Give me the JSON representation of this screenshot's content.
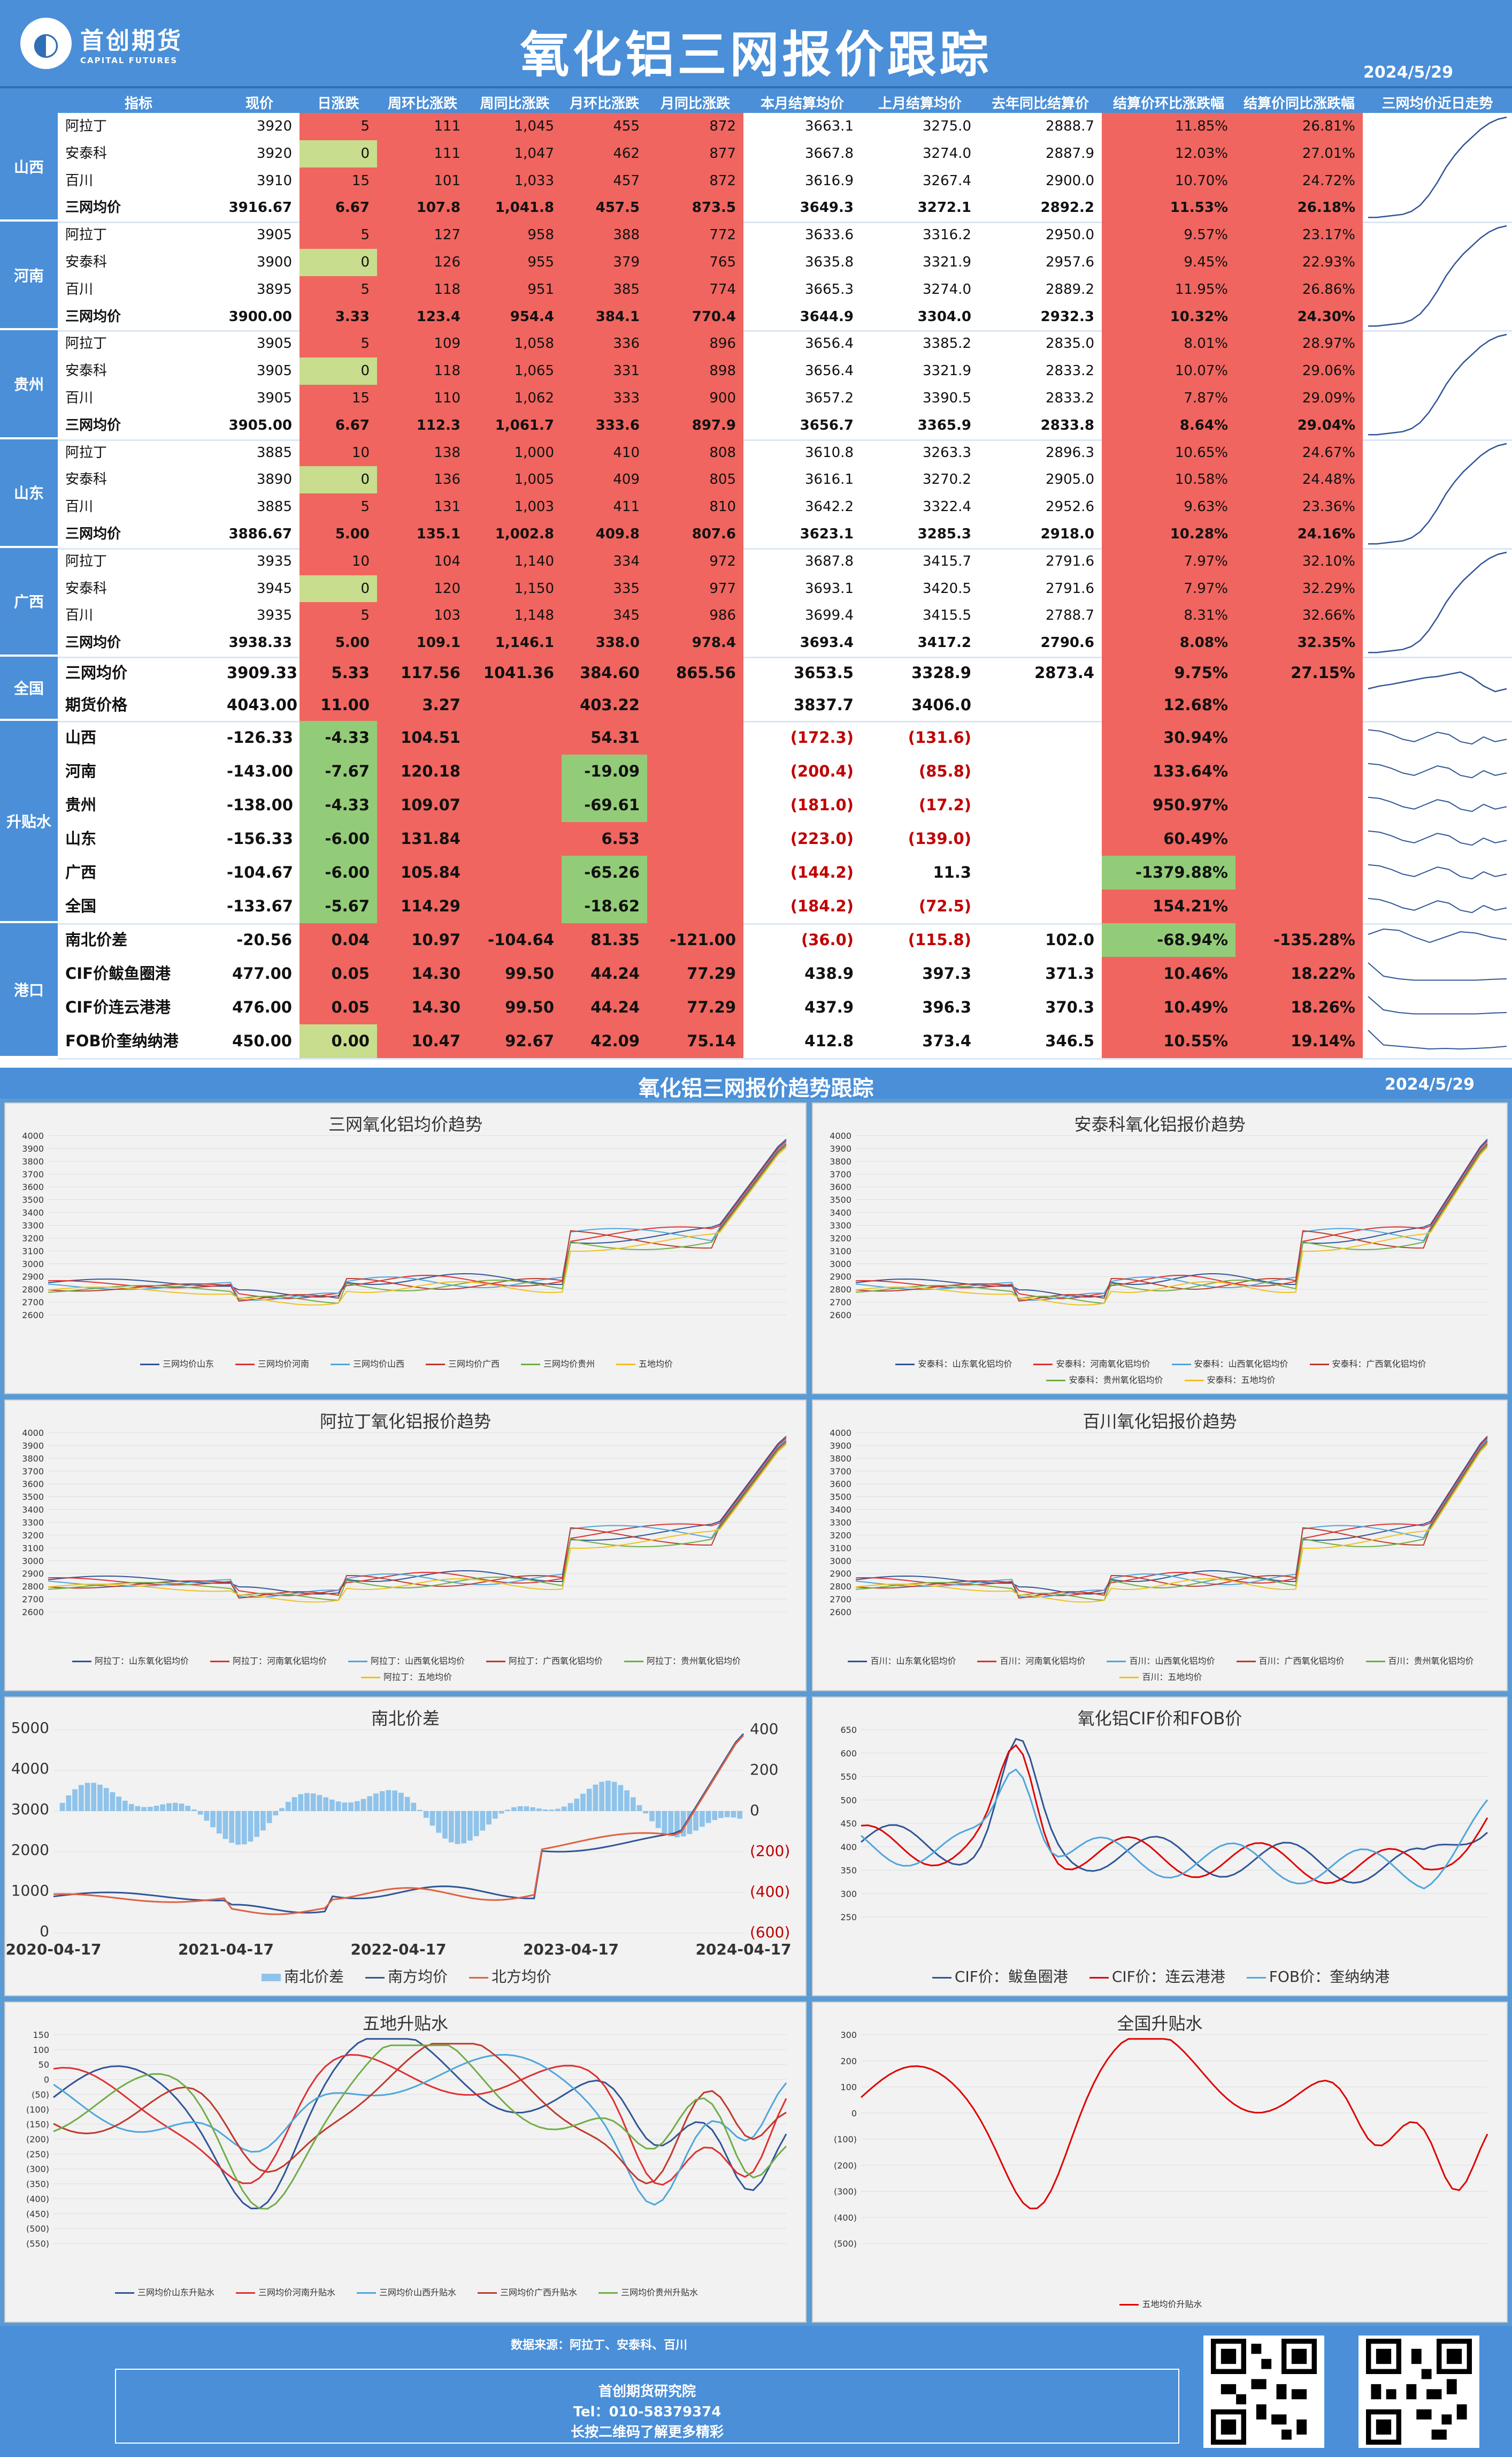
{
  "header": {
    "logo_cn": "首创期货",
    "logo_en": "CAPITAL FUTURES",
    "title": "氧化铝三网报价跟踪",
    "date": "2024/5/29"
  },
  "columns": [
    "指标",
    "现价",
    "日涨跌",
    "周环比涨跌",
    "周同比涨跌",
    "月环比涨跌",
    "月同比涨跌",
    "本月结算均价",
    "上月结算均价",
    "去年同比结算价",
    "结算价环比涨跌幅",
    "结算价同比涨跌幅",
    "三网均价近日走势"
  ],
  "regions": [
    {
      "name": "山西",
      "rows": [
        [
          "阿拉丁",
          "3920",
          "5",
          "111",
          "1,045",
          "455",
          "872",
          "3663.1",
          "3275.0",
          "2888.7",
          "11.85%",
          "26.81%"
        ],
        [
          "安泰科",
          "3920",
          "0",
          "111",
          "1,047",
          "462",
          "877",
          "3667.8",
          "3274.0",
          "2887.9",
          "12.03%",
          "27.01%"
        ],
        [
          "百川",
          "3910",
          "15",
          "101",
          "1,033",
          "457",
          "872",
          "3616.9",
          "3267.4",
          "2900.0",
          "10.70%",
          "24.72%"
        ],
        [
          "三网均价",
          "3916.67",
          "6.67",
          "107.8",
          "1,041.8",
          "457.5",
          "873.5",
          "3649.3",
          "3272.1",
          "2892.2",
          "11.53%",
          "26.18%"
        ]
      ]
    },
    {
      "name": "河南",
      "rows": [
        [
          "阿拉丁",
          "3905",
          "5",
          "127",
          "958",
          "388",
          "772",
          "3633.6",
          "3316.2",
          "2950.0",
          "9.57%",
          "23.17%"
        ],
        [
          "安泰科",
          "3900",
          "0",
          "126",
          "955",
          "379",
          "765",
          "3635.8",
          "3321.9",
          "2957.6",
          "9.45%",
          "22.93%"
        ],
        [
          "百川",
          "3895",
          "5",
          "118",
          "951",
          "385",
          "774",
          "3665.3",
          "3274.0",
          "2889.2",
          "11.95%",
          "26.86%"
        ],
        [
          "三网均价",
          "3900.00",
          "3.33",
          "123.4",
          "954.4",
          "384.1",
          "770.4",
          "3644.9",
          "3304.0",
          "2932.3",
          "10.32%",
          "24.30%"
        ]
      ]
    },
    {
      "name": "贵州",
      "rows": [
        [
          "阿拉丁",
          "3905",
          "5",
          "109",
          "1,058",
          "336",
          "896",
          "3656.4",
          "3385.2",
          "2835.0",
          "8.01%",
          "28.97%"
        ],
        [
          "安泰科",
          "3905",
          "0",
          "118",
          "1,065",
          "331",
          "898",
          "3656.4",
          "3321.9",
          "2833.2",
          "10.07%",
          "29.06%"
        ],
        [
          "百川",
          "3905",
          "15",
          "110",
          "1,062",
          "333",
          "900",
          "3657.2",
          "3390.5",
          "2833.2",
          "7.87%",
          "29.09%"
        ],
        [
          "三网均价",
          "3905.00",
          "6.67",
          "112.3",
          "1,061.7",
          "333.6",
          "897.9",
          "3656.7",
          "3365.9",
          "2833.8",
          "8.64%",
          "29.04%"
        ]
      ]
    },
    {
      "name": "山东",
      "rows": [
        [
          "阿拉丁",
          "3885",
          "10",
          "138",
          "1,000",
          "410",
          "808",
          "3610.8",
          "3263.3",
          "2896.3",
          "10.65%",
          "24.67%"
        ],
        [
          "安泰科",
          "3890",
          "0",
          "136",
          "1,005",
          "409",
          "805",
          "3616.1",
          "3270.2",
          "2905.0",
          "10.58%",
          "24.48%"
        ],
        [
          "百川",
          "3885",
          "5",
          "131",
          "1,003",
          "411",
          "810",
          "3642.2",
          "3322.4",
          "2952.6",
          "9.63%",
          "23.36%"
        ],
        [
          "三网均价",
          "3886.67",
          "5.00",
          "135.1",
          "1,002.8",
          "409.8",
          "807.6",
          "3623.1",
          "3285.3",
          "2918.0",
          "10.28%",
          "24.16%"
        ]
      ]
    },
    {
      "name": "广西",
      "rows": [
        [
          "阿拉丁",
          "3935",
          "10",
          "104",
          "1,140",
          "334",
          "972",
          "3687.8",
          "3415.7",
          "2791.6",
          "7.97%",
          "32.10%"
        ],
        [
          "安泰科",
          "3945",
          "0",
          "120",
          "1,150",
          "335",
          "977",
          "3693.1",
          "3420.5",
          "2791.6",
          "7.97%",
          "32.29%"
        ],
        [
          "百川",
          "3935",
          "5",
          "103",
          "1,148",
          "345",
          "986",
          "3699.4",
          "3415.5",
          "2788.7",
          "8.31%",
          "32.66%"
        ],
        [
          "三网均价",
          "3938.33",
          "5.00",
          "109.1",
          "1,146.1",
          "338.0",
          "978.4",
          "3693.4",
          "3417.2",
          "2790.6",
          "8.08%",
          "32.35%"
        ]
      ]
    }
  ],
  "national": {
    "name": "全国",
    "rows": [
      [
        "三网均价",
        "3909.33",
        "5.33",
        "117.56",
        "1041.36",
        "384.60",
        "865.56",
        "3653.5",
        "3328.9",
        "2873.4",
        "9.75%",
        "27.15%"
      ],
      [
        "期货价格",
        "4043.00",
        "11.00",
        "3.27",
        "",
        "403.22",
        "",
        "3837.7",
        "3406.0",
        "",
        "12.68%",
        ""
      ]
    ]
  },
  "basis": {
    "name": "升贴水",
    "rows": [
      [
        "山西",
        "-126.33",
        "-4.33",
        "104.51",
        "",
        "54.31",
        "",
        "(172.3)",
        "(131.6)",
        "",
        "30.94%",
        ""
      ],
      [
        "河南",
        "-143.00",
        "-7.67",
        "120.18",
        "",
        "-19.09",
        "",
        "(200.4)",
        "(85.8)",
        "",
        "133.64%",
        ""
      ],
      [
        "贵州",
        "-138.00",
        "-4.33",
        "109.07",
        "",
        "-69.61",
        "",
        "(181.0)",
        "(17.2)",
        "",
        "950.97%",
        ""
      ],
      [
        "山东",
        "-156.33",
        "-6.00",
        "131.84",
        "",
        "6.53",
        "",
        "(223.0)",
        "(139.0)",
        "",
        "60.49%",
        ""
      ],
      [
        "广西",
        "-104.67",
        "-6.00",
        "105.84",
        "",
        "-65.26",
        "",
        "(144.2)",
        "11.3",
        "",
        "-1379.88%",
        ""
      ],
      [
        "全国",
        "-133.67",
        "-5.67",
        "114.29",
        "",
        "-18.62",
        "",
        "(184.2)",
        "(72.5)",
        "",
        "154.21%",
        ""
      ]
    ]
  },
  "port": {
    "name": "港口",
    "rows": [
      [
        "南北价差",
        "-20.56",
        "0.04",
        "10.97",
        "-104.64",
        "81.35",
        "-121.00",
        "(36.0)",
        "(115.8)",
        "102.0",
        "-68.94%",
        "-135.28%"
      ],
      [
        "CIF价鲅鱼圈港",
        "477.00",
        "0.05",
        "14.30",
        "99.50",
        "44.24",
        "77.29",
        "438.9",
        "397.3",
        "371.3",
        "10.46%",
        "18.22%"
      ],
      [
        "CIF价连云港港",
        "476.00",
        "0.05",
        "14.30",
        "99.50",
        "44.24",
        "77.29",
        "437.9",
        "396.3",
        "370.3",
        "10.49%",
        "18.26%"
      ],
      [
        "FOB价奎纳纳港",
        "450.00",
        "0.00",
        "10.47",
        "92.67",
        "42.09",
        "75.14",
        "412.8",
        "373.4",
        "346.5",
        "10.55%",
        "19.14%"
      ]
    ]
  },
  "section2": {
    "title": "氧化铝三网报价趋势跟踪",
    "date": "2024/5/29"
  },
  "charts": [
    {
      "title": "三网氧化铝均价趋势",
      "yticks": [
        "4000",
        "3900",
        "3800",
        "3700",
        "3600",
        "3500",
        "3400",
        "3300",
        "3200",
        "3100",
        "3000",
        "2900",
        "2800",
        "2700",
        "2600"
      ],
      "legend": [
        "三网均价山东",
        "三网均价河南",
        "三网均价山西",
        "三网均价广西",
        "三网均价贵州",
        "五地均价"
      ]
    },
    {
      "title": "安泰科氧化铝报价趋势",
      "yticks": [
        "4000",
        "3900",
        "3800",
        "3700",
        "3600",
        "3500",
        "3400",
        "3300",
        "3200",
        "3100",
        "3000",
        "2900",
        "2800",
        "2700",
        "2600"
      ],
      "legend": [
        "安泰科：山东氧化铝均价",
        "安泰科：河南氧化铝均价",
        "安泰科：山西氧化铝均价",
        "安泰科：广西氧化铝均价",
        "安泰科：贵州氧化铝均价",
        "安泰科：五地均价"
      ]
    },
    {
      "title": "阿拉丁氧化铝报价趋势",
      "yticks": [
        "4000",
        "3900",
        "3800",
        "3700",
        "3600",
        "3500",
        "3400",
        "3300",
        "3200",
        "3100",
        "3000",
        "2900",
        "2800",
        "2700",
        "2600"
      ],
      "legend": [
        "阿拉丁：山东氧化铝均价",
        "阿拉丁：河南氧化铝均价",
        "阿拉丁：山西氧化铝均价",
        "阿拉丁：广西氧化铝均价",
        "阿拉丁：贵州氧化铝均价",
        "阿拉丁：五地均价"
      ]
    },
    {
      "title": "百川氧化铝报价趋势",
      "yticks": [
        "4000",
        "3900",
        "3800",
        "3700",
        "3600",
        "3500",
        "3400",
        "3300",
        "3200",
        "3100",
        "3000",
        "2900",
        "2800",
        "2700",
        "2600"
      ],
      "legend": [
        "百川：山东氧化铝均价",
        "百川：河南氧化铝均价",
        "百川：山西氧化铝均价",
        "百川：广西氧化铝均价",
        "百川：贵州氧化铝均价",
        "百川：五地均价"
      ]
    },
    {
      "title": "南北价差",
      "yticks": [
        "5000",
        "4000",
        "3000",
        "2000",
        "1000",
        "0"
      ],
      "y2ticks": [
        "400",
        "200",
        "0",
        "(200)",
        "(400)",
        "(600)"
      ],
      "xticks": [
        "2020-04-17",
        "2021-04-17",
        "2022-04-17",
        "2023-04-17",
        "2024-04-17"
      ],
      "legend": [
        "南北价差",
        "南方均价",
        "北方均价"
      ]
    },
    {
      "title": "氧化铝CIF价和FOB价",
      "yticks": [
        "650",
        "600",
        "550",
        "500",
        "450",
        "400",
        "350",
        "300",
        "250"
      ],
      "legend": [
        "CIF价：鲅鱼圈港",
        "CIF价：连云港港",
        "FOB价：奎纳纳港"
      ]
    },
    {
      "title": "五地升贴水",
      "yticks": [
        "150",
        "100",
        "50",
        "0",
        "(50)",
        "(100)",
        "(150)",
        "(200)",
        "(250)",
        "(300)",
        "(350)",
        "(400)",
        "(450)",
        "(500)",
        "(550)"
      ],
      "legend": [
        "三网均价山东升贴水",
        "三网均价河南升贴水",
        "三网均价山西升贴水",
        "三网均价广西升贴水",
        "三网均价贵州升贴水"
      ]
    },
    {
      "title": "全国升贴水",
      "yticks": [
        "300",
        "200",
        "100",
        "0",
        "(100)",
        "(200)",
        "(300)",
        "(400)",
        "(500)"
      ],
      "legend": [
        "五地均价升贴水"
      ]
    }
  ],
  "colors": {
    "blue": "#4a8fd8",
    "red": "#f0655f",
    "green": "#c8dd8d"
  },
  "footer": {
    "source": "数据来源：阿拉丁、安泰科、百川",
    "org": "首创期货研究院",
    "tel": "Tel：010-58379374",
    "note": "长按二维码了解更多精彩"
  }
}
